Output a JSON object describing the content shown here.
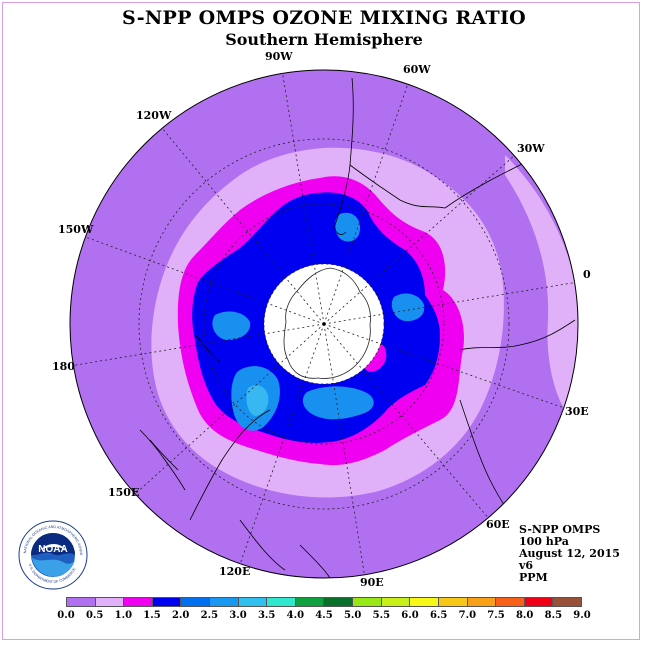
{
  "title": "S-NPP OMPS OZONE MIXING RATIO",
  "subtitle": "Southern Hemisphere",
  "longitude_labels": [
    "90W",
    "60W",
    "30W",
    "0",
    "30E",
    "60E",
    "90E",
    "120E",
    "150E",
    "180",
    "150W",
    "120W"
  ],
  "info": {
    "instrument": "S-NPP OMPS",
    "level": "100 hPa",
    "date": "August 12, 2015",
    "version": "v6",
    "units": "PPM"
  },
  "logo": {
    "text": "NOAA",
    "ring_text": "NATIONAL OCEANIC AND ATMOSPHERIC ADMINISTRATION",
    "ring_text_bottom": "U.S. DEPARTMENT OF COMMERCE"
  },
  "colorbar": {
    "ticks": [
      "0.0",
      "0.5",
      "1.0",
      "1.5",
      "2.0",
      "2.5",
      "3.0",
      "3.5",
      "4.0",
      "4.5",
      "5.0",
      "5.5",
      "6.0",
      "6.5",
      "7.0",
      "7.5",
      "8.0",
      "8.5",
      "9.0"
    ],
    "colors": [
      "#b070f0",
      "#e0b0f8",
      "#f000f0",
      "#0000f0",
      "#0070f0",
      "#1898f0",
      "#30c0f0",
      "#30e8d0",
      "#10a040",
      "#087028",
      "#98e818",
      "#c8f018",
      "#f8f818",
      "#f8c818",
      "#f8a018",
      "#f86018",
      "#f00018",
      "#985038"
    ]
  },
  "map": {
    "colors": {
      "outer": "#b070f0",
      "light": "#e0b0f8",
      "magenta": "#f000f0",
      "blue": "#0000f0",
      "lightblue": "#1890f0",
      "cyan": "#38b8f0",
      "pole": "#ffffff"
    }
  }
}
